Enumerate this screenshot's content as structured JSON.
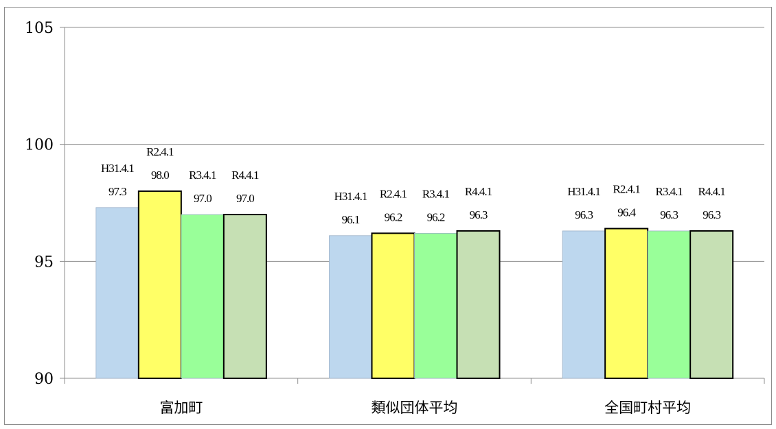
{
  "chart_data": {
    "type": "bar",
    "title": "",
    "xlabel": "",
    "ylabel": "",
    "ylim": [
      90,
      105
    ],
    "yticks": [
      "90",
      "95",
      "100",
      "105"
    ],
    "ytick_values": [
      90,
      95,
      100,
      105
    ],
    "grid": true,
    "categories": [
      "富加町",
      "類似団体平均",
      "全国町村平均"
    ],
    "series": [
      {
        "name": "H31.4.1",
        "color": "#bdd7ee",
        "values": [
          97.3,
          96.1,
          96.3
        ],
        "labels": [
          "97.3",
          "96.1",
          "96.3"
        ]
      },
      {
        "name": "R2.4.1",
        "color": "#ffff66",
        "values": [
          98.0,
          96.2,
          96.4
        ],
        "labels": [
          "98.0",
          "96.2",
          "96.4"
        ]
      },
      {
        "name": "R3.4.1",
        "color": "#99ff99",
        "values": [
          97.0,
          96.2,
          96.3
        ],
        "labels": [
          "97.0",
          "96.2",
          "96.3"
        ]
      },
      {
        "name": "R4.4.1",
        "color": "#c6e0b4",
        "values": [
          97.0,
          96.3,
          96.3
        ],
        "labels": [
          "97.0",
          "96.3",
          "96.3"
        ]
      }
    ]
  }
}
